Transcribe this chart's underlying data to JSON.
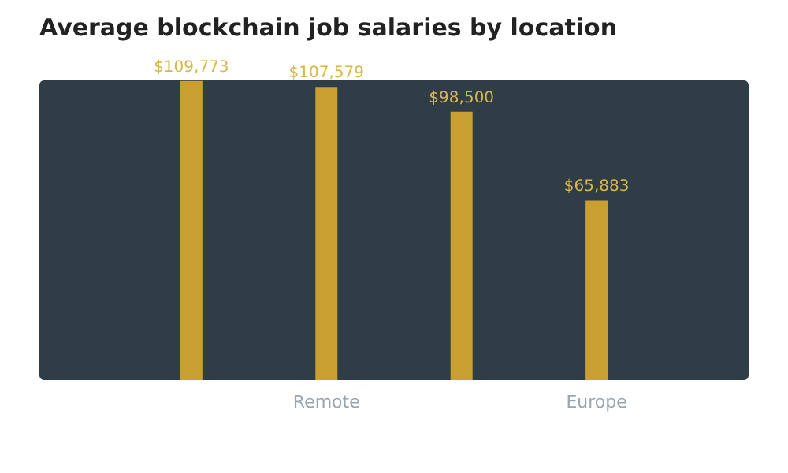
{
  "chart_data": {
    "type": "bar",
    "title": "Average blockchain job salaries by location",
    "categories": [
      null,
      "Remote",
      null,
      "Europe"
    ],
    "values": [
      109773,
      107579,
      98500,
      65883
    ],
    "value_labels": [
      "$109,773",
      "$107,579",
      "$98,500",
      "$65,883"
    ],
    "color": "#c9a030"
  }
}
